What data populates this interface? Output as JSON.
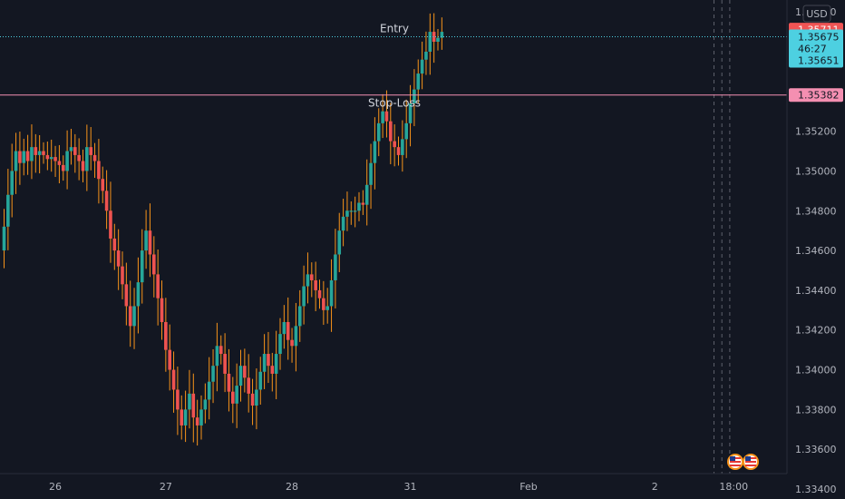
{
  "currency": "USD",
  "countdown": "46:27",
  "colors": {
    "background": "#131722",
    "up": "#26a69a",
    "down": "#ef5350",
    "wick": "#f7931a",
    "entry": "#4dd0e1",
    "stop_loss": "#f48fb1",
    "target_tag": "#f05454"
  },
  "chart_data": {
    "type": "candlestick",
    "title": "",
    "xlabel": "",
    "ylabel": "",
    "ylim": [
      1.3335,
      1.3586
    ],
    "y_ticks": [
      "1.35800",
      "1.35200",
      "1.35000",
      "1.34800",
      "1.34600",
      "1.34400",
      "1.34200",
      "1.34000",
      "1.33800",
      "1.33600",
      "1.33400"
    ],
    "y_tick_values": [
      1.358,
      1.352,
      1.35,
      1.348,
      1.346,
      1.344,
      1.342,
      1.34,
      1.338,
      1.336,
      1.334
    ],
    "x_ticks": [
      "26",
      "27",
      "28",
      "31",
      "Feb",
      "2",
      "18:00"
    ],
    "x_tick_index": [
      13,
      41,
      73,
      103,
      133,
      165,
      185
    ],
    "lines": [
      {
        "label": "Entry",
        "value": 1.35675,
        "price_tag": "1.35675",
        "style": "dotted",
        "color": "#4dd0e1"
      },
      {
        "label": "Stop-Loss",
        "value": 1.35382,
        "price_tag": "1.35382",
        "style": "solid",
        "color": "#f48fb1"
      }
    ],
    "price_tags": [
      {
        "text": "1.35711",
        "value": 1.35711,
        "color": "#f05454"
      },
      {
        "text": "1.35651",
        "value": 1.35651,
        "color": "#4dd0e1"
      }
    ],
    "vertical_markers_index": [
      180,
      182,
      184
    ],
    "candle_open": [
      1.346,
      1.3472,
      1.3488,
      1.35,
      1.351,
      1.3504,
      1.351,
      1.3505,
      1.3512,
      1.3508,
      1.351,
      1.3508,
      1.3506,
      1.3507,
      1.3505,
      1.3503,
      1.35,
      1.351,
      1.3512,
      1.3508,
      1.3505,
      1.35,
      1.3512,
      1.3508,
      1.3505,
      1.3496,
      1.349,
      1.348,
      1.3466,
      1.346,
      1.3452,
      1.3443,
      1.3432,
      1.3422,
      1.3432,
      1.3444,
      1.346,
      1.347,
      1.3458,
      1.3448,
      1.3436,
      1.3424,
      1.341,
      1.34,
      1.339,
      1.338,
      1.3372,
      1.338,
      1.3388,
      1.3376,
      1.3372,
      1.338,
      1.3385,
      1.3394,
      1.3402,
      1.3412,
      1.3408,
      1.3398,
      1.3389,
      1.3383,
      1.3392,
      1.3402,
      1.3396,
      1.3388,
      1.3382,
      1.339,
      1.3399,
      1.3408,
      1.3402,
      1.3398,
      1.3408,
      1.3418,
      1.3424,
      1.3415,
      1.3412,
      1.3422,
      1.3432,
      1.3442,
      1.3448,
      1.3445,
      1.344,
      1.3436,
      1.343,
      1.3432,
      1.3445,
      1.3458,
      1.347,
      1.3477,
      1.348,
      1.348,
      1.348,
      1.3484,
      1.3483,
      1.3493,
      1.3504,
      1.3515,
      1.3524,
      1.353,
      1.3525,
      1.3515,
      1.3512,
      1.3508,
      1.3516,
      1.3524,
      1.3534,
      1.3541,
      1.3549,
      1.3556,
      1.356,
      1.357,
      1.3565,
      1.3567
    ],
    "candle_close": [
      1.3472,
      1.3488,
      1.35,
      1.351,
      1.3504,
      1.351,
      1.3505,
      1.3512,
      1.3508,
      1.351,
      1.3508,
      1.3506,
      1.3507,
      1.3505,
      1.3503,
      1.35,
      1.351,
      1.3512,
      1.3508,
      1.3505,
      1.35,
      1.3512,
      1.3508,
      1.3505,
      1.3496,
      1.349,
      1.348,
      1.3466,
      1.346,
      1.3452,
      1.3443,
      1.3432,
      1.3422,
      1.3432,
      1.3444,
      1.346,
      1.347,
      1.3458,
      1.3448,
      1.3436,
      1.3424,
      1.341,
      1.34,
      1.339,
      1.338,
      1.3372,
      1.338,
      1.3388,
      1.3376,
      1.3372,
      1.338,
      1.3385,
      1.3394,
      1.3402,
      1.3412,
      1.3408,
      1.3398,
      1.3389,
      1.3383,
      1.3392,
      1.3402,
      1.3396,
      1.3388,
      1.3382,
      1.339,
      1.3399,
      1.3408,
      1.3402,
      1.3398,
      1.3408,
      1.3418,
      1.3424,
      1.3415,
      1.3412,
      1.3422,
      1.3432,
      1.3442,
      1.3448,
      1.3445,
      1.344,
      1.3436,
      1.343,
      1.3432,
      1.3445,
      1.3458,
      1.347,
      1.3477,
      1.348,
      1.348,
      1.348,
      1.3484,
      1.3483,
      1.3493,
      1.3504,
      1.3515,
      1.3524,
      1.353,
      1.3525,
      1.3515,
      1.3512,
      1.3508,
      1.3516,
      1.3524,
      1.3534,
      1.3541,
      1.3549,
      1.3556,
      1.356,
      1.357,
      1.3565,
      1.3567,
      1.357
    ]
  }
}
